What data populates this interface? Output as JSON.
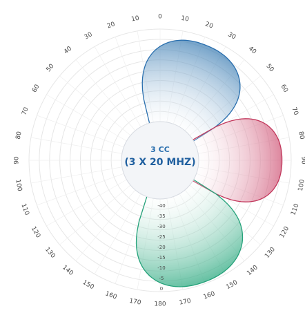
{
  "chart_data": {
    "type": "polar-area",
    "angle_labels": [
      "0",
      "10",
      "20",
      "30",
      "40",
      "50",
      "60",
      "70",
      "80",
      "90",
      "100",
      "110",
      "120",
      "130",
      "140",
      "150",
      "160",
      "170",
      "180",
      "170",
      "160",
      "150",
      "140",
      "130",
      "120",
      "110",
      "100",
      "90",
      "80",
      "70",
      "60",
      "50",
      "40",
      "30",
      "20",
      "10"
    ],
    "radial_labels": [
      "-40",
      "-35",
      "-30",
      "-25",
      "-20",
      "-15",
      "-10",
      "-5",
      "0"
    ],
    "radial_range": [
      -40,
      0
    ],
    "center_label_line1": "3 CC",
    "center_label_line2": "(3 X 20 MHZ)",
    "lobes": [
      {
        "color": "#2a6fae",
        "center_deg": 22,
        "half_width_deg": 38,
        "level": 0.92
      },
      {
        "color": "#c2385c",
        "center_deg": 90,
        "half_width_deg": 32,
        "level": 0.9
      },
      {
        "color": "#25a27a",
        "center_deg": 160,
        "half_width_deg": 40,
        "level": 0.98
      }
    ],
    "grid": true
  }
}
